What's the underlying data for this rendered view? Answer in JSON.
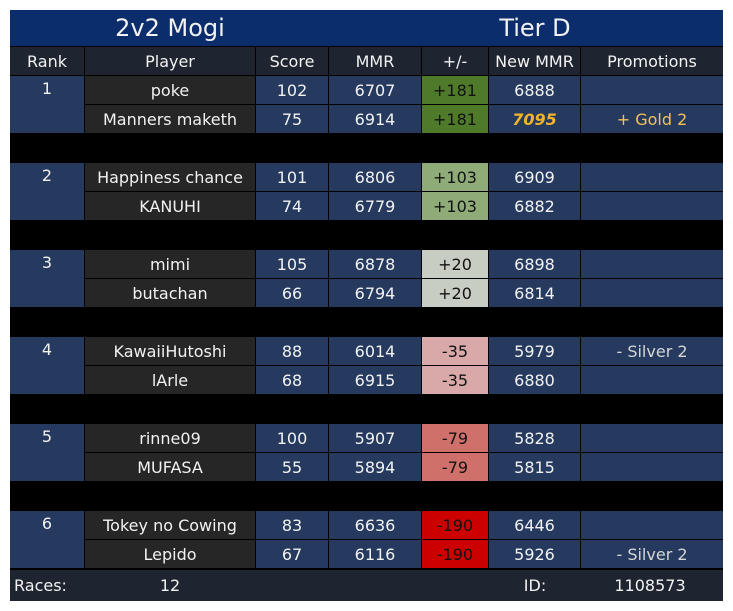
{
  "header": {
    "title": "2v2 Mogi",
    "tier": "Tier D"
  },
  "columns": [
    "Rank",
    "Player",
    "Score",
    "MMR",
    "+/-",
    "New MMR",
    "Promotions"
  ],
  "teams": [
    {
      "rank": 1,
      "players": [
        {
          "name": "poke",
          "score": 102,
          "mmr": 6707,
          "delta": "+181",
          "delta_color": "#4e7a2a",
          "new_mmr": 6888
        },
        {
          "name": "Manners maketh",
          "score": 75,
          "mmr": 6914,
          "delta": "+181",
          "delta_color": "#4e7a2a",
          "new_mmr": 7095,
          "new_mmr_color": "#f0b429",
          "promotion": "+ Gold 2",
          "promotion_color": "#f2c25a"
        }
      ]
    },
    {
      "rank": 2,
      "players": [
        {
          "name": "Happiness chance",
          "score": 101,
          "mmr": 6806,
          "delta": "+103",
          "delta_color": "#8fac78",
          "new_mmr": 6909
        },
        {
          "name": "KANUHI",
          "score": 74,
          "mmr": 6779,
          "delta": "+103",
          "delta_color": "#8fac78",
          "new_mmr": 6882
        }
      ]
    },
    {
      "rank": 3,
      "players": [
        {
          "name": "mimi",
          "score": 105,
          "mmr": 6878,
          "delta": "+20",
          "delta_color": "#c8cdc4",
          "new_mmr": 6898
        },
        {
          "name": "butachan",
          "score": 66,
          "mmr": 6794,
          "delta": "+20",
          "delta_color": "#c8cdc4",
          "new_mmr": 6814
        }
      ]
    },
    {
      "rank": 4,
      "players": [
        {
          "name": "KawaiiHutoshi",
          "score": 88,
          "mmr": 6014,
          "delta": "-35",
          "delta_color": "#d8a9a8",
          "new_mmr": 5979,
          "promotion": "- Silver 2",
          "promotion_color": "#d6d6d6"
        },
        {
          "name": "lArle",
          "score": 68,
          "mmr": 6915,
          "delta": "-35",
          "delta_color": "#d8a9a8",
          "new_mmr": 6880
        }
      ]
    },
    {
      "rank": 5,
      "players": [
        {
          "name": "rinne09",
          "score": 100,
          "mmr": 5907,
          "delta": "-79",
          "delta_color": "#cf706a",
          "new_mmr": 5828
        },
        {
          "name": "MUFASA",
          "score": 55,
          "mmr": 5894,
          "delta": "-79",
          "delta_color": "#cf706a",
          "new_mmr": 5815
        }
      ]
    },
    {
      "rank": 6,
      "players": [
        {
          "name": "Tokey no Cowing",
          "score": 83,
          "mmr": 6636,
          "delta": "-190",
          "delta_color": "#cc0000",
          "new_mmr": 6446
        },
        {
          "name": "Lepido",
          "score": 67,
          "mmr": 6116,
          "delta": "-190",
          "delta_color": "#cc0000",
          "new_mmr": 5926,
          "promotion": "- Silver 2",
          "promotion_color": "#d6d6d6"
        }
      ]
    }
  ],
  "footer": {
    "races_label": "Races:",
    "races": 12,
    "id_label": "ID:",
    "id": 1108573
  }
}
